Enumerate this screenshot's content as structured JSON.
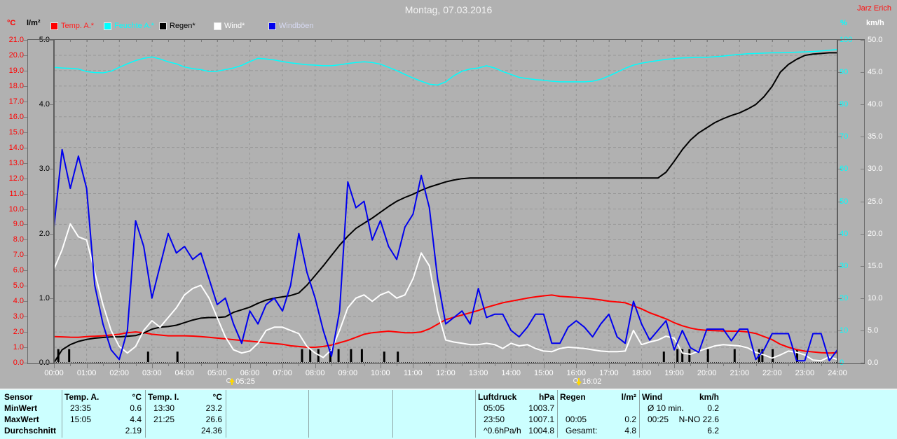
{
  "window": {
    "title": "Montag, 07.03.2016",
    "author": "Jarz Erich"
  },
  "axes": {
    "left_temp": {
      "unit": "°C",
      "color": "#ff0000",
      "ticks": [
        "21.0",
        "20.0",
        "19.0",
        "18.0",
        "17.0",
        "16.0",
        "15.0",
        "14.0",
        "13.0",
        "12.0",
        "11.0",
        "10.0",
        "9.0",
        "8.0",
        "7.0",
        "6.0",
        "5.0",
        "4.0",
        "3.0",
        "2.0",
        "1.0",
        "0.0"
      ]
    },
    "left_rain": {
      "unit": "l/m²",
      "color": "#000000",
      "ticks": [
        "5.0",
        "4.0",
        "3.0",
        "2.0",
        "1.0",
        "0.0"
      ]
    },
    "right_humidity": {
      "unit": "%",
      "color": "#00ffff",
      "ticks": [
        "100",
        "90",
        "80",
        "70",
        "60",
        "50",
        "40",
        "30",
        "20",
        "10",
        "0"
      ]
    },
    "right_wind": {
      "unit": "km/h",
      "color": "#ffffff",
      "ticks": [
        "50.0",
        "45.0",
        "40.0",
        "35.0",
        "30.0",
        "25.0",
        "20.0",
        "15.0",
        "10.0",
        "5.0",
        "0.0"
      ]
    },
    "time": {
      "labels": [
        "00:00",
        "01:00",
        "02:00",
        "03:00",
        "04:00",
        "05:00",
        "06:00",
        "07:00",
        "08:00",
        "09:00",
        "10:00",
        "11:00",
        "12:00",
        "13:00",
        "14:00",
        "15:00",
        "16:00",
        "17:00",
        "18:00",
        "19:00",
        "20:00",
        "21:00",
        "22:00",
        "23:00",
        "24:00"
      ]
    }
  },
  "legend": [
    {
      "label": "Temp. A.*",
      "swatch": "#ff0000",
      "text_color": "#ff2020"
    },
    {
      "label": "Feuchte A.*",
      "swatch": "#00ffff",
      "text_color": "#00ffff"
    },
    {
      "label": "Regen*",
      "swatch": "#000000",
      "text_color": "#000000"
    },
    {
      "label": "Wind*",
      "swatch": "#ffffff",
      "text_color": "#ffffff"
    },
    {
      "label": "Windböen",
      "swatch": "#0000ee",
      "text_color": "#d6d9f2"
    }
  ],
  "markers": [
    {
      "time": "05:25",
      "minutes": 325,
      "icon": "sunrise-icon"
    },
    {
      "time": "16:02",
      "minutes": 962,
      "icon": "sunset-icon"
    }
  ],
  "chart_data": {
    "type": "line",
    "title": "Montag, 07.03.2016",
    "x_start_min": 0,
    "x_end_min": 1440,
    "sample_step_min": 15,
    "axis_ranges": {
      "temp_c": [
        0,
        21
      ],
      "rain_lm2": [
        0,
        5
      ],
      "humidity_pct": [
        0,
        100
      ],
      "wind_kmh": [
        0,
        50
      ]
    },
    "grid": {
      "h_step_temp_c": 1.0,
      "v_step_min": 60
    },
    "series": [
      {
        "name": "Temp. A.",
        "color": "#ff0000",
        "axis": "temp_c",
        "width": 2,
        "values": [
          1.7,
          1.68,
          1.66,
          1.65,
          1.7,
          1.72,
          1.75,
          1.8,
          1.85,
          1.95,
          2.0,
          1.95,
          1.85,
          1.8,
          1.75,
          1.75,
          1.75,
          1.73,
          1.7,
          1.65,
          1.6,
          1.55,
          1.5,
          1.45,
          1.4,
          1.35,
          1.3,
          1.25,
          1.2,
          1.1,
          1.05,
          1.0,
          1.0,
          1.05,
          1.15,
          1.3,
          1.45,
          1.65,
          1.85,
          1.95,
          2.0,
          2.05,
          2.0,
          1.95,
          1.95,
          2.0,
          2.2,
          2.5,
          2.8,
          2.95,
          3.1,
          3.25,
          3.4,
          3.6,
          3.75,
          3.9,
          4.0,
          4.1,
          4.2,
          4.28,
          4.35,
          4.4,
          4.32,
          4.28,
          4.25,
          4.2,
          4.15,
          4.08,
          4.0,
          3.95,
          3.9,
          3.7,
          3.5,
          3.25,
          3.05,
          2.85,
          2.6,
          2.4,
          2.25,
          2.15,
          2.1,
          2.08,
          2.06,
          2.05,
          2.05,
          2.0,
          1.9,
          1.7,
          1.5,
          1.2,
          1.0,
          0.85,
          0.75,
          0.7,
          0.65,
          0.63,
          0.65
        ]
      },
      {
        "name": "Feuchte A.",
        "color": "#00ffff",
        "axis": "humidity_pct",
        "width": 1.5,
        "values": [
          91.5,
          91.3,
          91.2,
          91.0,
          90.2,
          89.9,
          89.8,
          90.3,
          91.5,
          92.6,
          93.6,
          94.3,
          94.7,
          94.1,
          93.2,
          92.6,
          91.6,
          91.1,
          90.8,
          90.2,
          90.3,
          90.8,
          91.3,
          92.1,
          93.3,
          94.3,
          94.1,
          93.8,
          93.3,
          92.9,
          92.6,
          92.3,
          92.2,
          92.0,
          92.0,
          92.3,
          92.7,
          93.0,
          93.2,
          93.0,
          92.5,
          91.5,
          90.5,
          89.3,
          88.2,
          87.2,
          86.3,
          86.0,
          87.0,
          88.9,
          90.3,
          91.0,
          91.3,
          92.0,
          91.3,
          90.2,
          89.3,
          88.4,
          88.0,
          87.7,
          87.5,
          87.2,
          87.0,
          87.0,
          87.0,
          87.0,
          87.2,
          87.8,
          88.8,
          90.0,
          91.2,
          92.2,
          92.8,
          93.2,
          93.6,
          94.0,
          94.2,
          94.4,
          94.5,
          94.6,
          94.6,
          94.8,
          95.0,
          95.3,
          95.5,
          95.7,
          95.8,
          95.9,
          96.0,
          96.0,
          96.1,
          96.2,
          96.3,
          96.4,
          96.6,
          96.8,
          97.0
        ]
      },
      {
        "name": "Regen",
        "color": "#000000",
        "axis": "rain_lm2",
        "width": 2,
        "values": [
          0.0,
          0.2,
          0.28,
          0.33,
          0.36,
          0.38,
          0.39,
          0.4,
          0.4,
          0.41,
          0.42,
          0.46,
          0.52,
          0.55,
          0.56,
          0.58,
          0.62,
          0.66,
          0.69,
          0.7,
          0.7,
          0.71,
          0.78,
          0.82,
          0.86,
          0.92,
          0.97,
          1.0,
          1.02,
          1.04,
          1.08,
          1.2,
          1.35,
          1.5,
          1.66,
          1.82,
          1.96,
          2.08,
          2.16,
          2.24,
          2.33,
          2.42,
          2.5,
          2.56,
          2.61,
          2.67,
          2.72,
          2.76,
          2.8,
          2.83,
          2.85,
          2.86,
          2.86,
          2.86,
          2.86,
          2.86,
          2.86,
          2.86,
          2.86,
          2.86,
          2.86,
          2.86,
          2.86,
          2.86,
          2.86,
          2.86,
          2.86,
          2.86,
          2.86,
          2.86,
          2.86,
          2.86,
          2.86,
          2.86,
          2.86,
          2.95,
          3.12,
          3.3,
          3.45,
          3.56,
          3.64,
          3.72,
          3.78,
          3.83,
          3.87,
          3.93,
          4.0,
          4.12,
          4.28,
          4.5,
          4.62,
          4.7,
          4.76,
          4.78,
          4.79,
          4.8,
          4.8
        ]
      },
      {
        "name": "Wind",
        "color": "#ffffff",
        "axis": "wind_kmh",
        "width": 2,
        "values": [
          14.5,
          17.5,
          21.5,
          19.5,
          19.0,
          14.0,
          9.0,
          5.0,
          2.5,
          1.5,
          2.5,
          5.0,
          6.5,
          5.5,
          7.0,
          8.5,
          10.5,
          11.5,
          12.0,
          10.0,
          7.0,
          4.0,
          2.0,
          1.5,
          1.8,
          3.0,
          5.0,
          5.5,
          5.5,
          5.0,
          4.5,
          2.5,
          1.5,
          0.8,
          2.0,
          5.0,
          8.5,
          10.0,
          10.5,
          9.5,
          10.5,
          11.0,
          10.0,
          10.5,
          13.0,
          17.0,
          15.0,
          8.0,
          3.5,
          3.2,
          3.0,
          2.8,
          2.8,
          3.0,
          2.8,
          2.2,
          3.0,
          2.6,
          2.8,
          2.2,
          1.8,
          1.7,
          2.2,
          2.4,
          2.3,
          2.2,
          2.0,
          1.8,
          1.7,
          1.7,
          1.8,
          5.0,
          2.8,
          3.2,
          3.5,
          4.1,
          3.8,
          1.5,
          1.3,
          1.8,
          2.2,
          2.6,
          2.8,
          2.7,
          2.6,
          2.3,
          1.6,
          1.2,
          0.7,
          1.2,
          1.8,
          1.6,
          1.2,
          0.4,
          0.3,
          0.9,
          0.5
        ]
      },
      {
        "name": "Windböen",
        "color": "#0000ee",
        "axis": "wind_kmh",
        "width": 2,
        "values": [
          21,
          33,
          27,
          32,
          27,
          12,
          6,
          2,
          0.5,
          5,
          22,
          18,
          10,
          15,
          20,
          17,
          18,
          16,
          17,
          13,
          9,
          10,
          6,
          3,
          8,
          6,
          9,
          10,
          8,
          12,
          20,
          14,
          10,
          5,
          1,
          8,
          28,
          24,
          25,
          19,
          22,
          18,
          16,
          21,
          23,
          29,
          24,
          13,
          6,
          7,
          8,
          6,
          11.5,
          7,
          7.5,
          7.5,
          5,
          4,
          5.5,
          7.5,
          7.5,
          3,
          3,
          5.5,
          6.5,
          5.5,
          4,
          6,
          7.5,
          4,
          3,
          9.5,
          6,
          3.5,
          5,
          6.5,
          2,
          5,
          2.3,
          1.6,
          5.2,
          5.2,
          5.2,
          3.4,
          5.2,
          5.2,
          0.5,
          2,
          4.5,
          4.5,
          4.5,
          0.3,
          0.3,
          4.5,
          4.5,
          0.3,
          2
        ]
      }
    ],
    "rain_bars": {
      "color": "#000000",
      "axis": "rain_lm2",
      "points": [
        [
          8,
          0.2
        ],
        [
          28,
          0.2
        ],
        [
          173,
          0.16
        ],
        [
          227,
          0.16
        ],
        [
          456,
          0.2
        ],
        [
          471,
          0.2
        ],
        [
          486,
          0.2
        ],
        [
          508,
          0.2
        ],
        [
          523,
          0.2
        ],
        [
          546,
          0.2
        ],
        [
          566,
          0.2
        ],
        [
          607,
          0.16
        ],
        [
          632,
          0.16
        ],
        [
          1121,
          0.16
        ],
        [
          1146,
          0.2
        ],
        [
          1155,
          0.2
        ],
        [
          1168,
          0.2
        ],
        [
          1202,
          0.2
        ],
        [
          1251,
          0.2
        ],
        [
          1296,
          0.2
        ],
        [
          1302,
          0.2
        ],
        [
          1321,
          0.2
        ],
        [
          1366,
          0.2
        ]
      ]
    }
  },
  "table": {
    "row_labels": [
      "Sensor",
      "MinWert",
      "MaxWert",
      "Durchschnitt"
    ],
    "columns": [
      {
        "name": "Temp. A.",
        "unit": "°C",
        "rows": [
          [
            "23:35",
            "0.6"
          ],
          [
            "15:05",
            "4.4"
          ],
          [
            "",
            "2.19"
          ]
        ]
      },
      {
        "name": "Temp. I.",
        "unit": "°C",
        "rows": [
          [
            "13:30",
            "23.2"
          ],
          [
            "21:25",
            "26.6"
          ],
          [
            "",
            "24.36"
          ]
        ]
      },
      {
        "name": "",
        "unit": "",
        "rows": [
          [
            "",
            ""
          ],
          [
            "",
            ""
          ],
          [
            "",
            ""
          ]
        ]
      },
      {
        "name": "",
        "unit": "",
        "rows": [
          [
            "",
            ""
          ],
          [
            "",
            ""
          ],
          [
            "",
            ""
          ]
        ]
      },
      {
        "name": "",
        "unit": "",
        "rows": [
          [
            "",
            ""
          ],
          [
            "",
            ""
          ],
          [
            "",
            ""
          ]
        ]
      },
      {
        "name": "Luftdruck",
        "unit": "hPa",
        "rows": [
          [
            "05:05",
            "1003.7"
          ],
          [
            "23:50",
            "1007.1"
          ],
          [
            "^0.6hPa/h",
            "1004.8"
          ]
        ]
      },
      {
        "name": "Regen",
        "unit": "l/m²",
        "rows": [
          [
            "",
            ""
          ],
          [
            "00:05",
            "0.2"
          ],
          [
            "Gesamt:",
            "4.8"
          ]
        ]
      },
      {
        "name": "Wind",
        "unit": "km/h",
        "rows": [
          [
            "Ø 10 min.",
            "0.2"
          ],
          [
            "00:25",
            "N-NO 22.6"
          ],
          [
            "",
            "6.2"
          ]
        ]
      }
    ]
  }
}
